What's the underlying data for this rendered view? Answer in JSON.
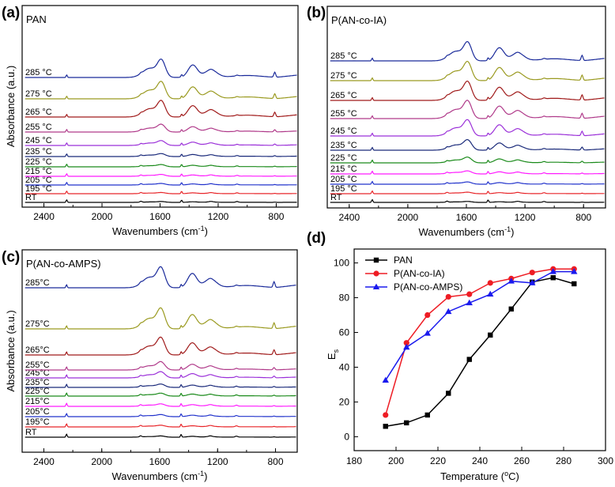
{
  "chart_data": [
    {
      "panel": "(a)",
      "type": "line",
      "title": "PAN",
      "xlabel": "Wavenumbers (cm",
      "xlabel_sup": "-1",
      "xlabel_close": ")",
      "ylabel": "Absorbance (a.u.)",
      "x_range": [
        2550,
        650
      ],
      "x_ticks": [
        "2400",
        "2000",
        "1600",
        "1200",
        "800"
      ],
      "series": [
        {
          "name": "RT",
          "color": "#000000",
          "strength": 0.05
        },
        {
          "name": "195 °C",
          "color": "#e8262a",
          "strength": 0.07
        },
        {
          "name": "205 °C",
          "color": "#2233cc",
          "strength": 0.09
        },
        {
          "name": "215 °C",
          "color": "#ff1aff",
          "strength": 0.11
        },
        {
          "name": "225 °C",
          "color": "#1a8a1a",
          "strength": 0.13
        },
        {
          "name": "235 °C",
          "color": "#1a2a7a",
          "strength": 0.17
        },
        {
          "name": "245 °C",
          "color": "#9b30d9",
          "strength": 0.28
        },
        {
          "name": "255 °C",
          "color": "#b03a8a",
          "strength": 0.45
        },
        {
          "name": "265 °C",
          "color": "#a01a1a",
          "strength": 0.95
        },
        {
          "name": "275 °C",
          "color": "#9a9a20",
          "strength": 1.0
        },
        {
          "name": "285 °C",
          "color": "#1a2a9a",
          "strength": 1.05
        }
      ]
    },
    {
      "panel": "(b)",
      "type": "line",
      "title": "P(AN-co-IA)",
      "xlabel": "Wavenumbers (cm",
      "xlabel_sup": "-1",
      "xlabel_close": ")",
      "ylabel": "",
      "x_range": [
        2550,
        650
      ],
      "x_ticks": [
        "2400",
        "2000",
        "1600",
        "1200",
        "800"
      ],
      "series": [
        {
          "name": "RT",
          "color": "#000000",
          "strength": 0.05
        },
        {
          "name": "195 °C",
          "color": "#e8262a",
          "strength": 0.08
        },
        {
          "name": "205 °C",
          "color": "#2233cc",
          "strength": 0.12
        },
        {
          "name": "215 °C",
          "color": "#ff1aff",
          "strength": 0.16
        },
        {
          "name": "225 °C",
          "color": "#1a8a1a",
          "strength": 0.3
        },
        {
          "name": "235 °C",
          "color": "#1a2a7a",
          "strength": 0.55
        },
        {
          "name": "245 °C",
          "color": "#9b30d9",
          "strength": 0.85
        },
        {
          "name": "255 °C",
          "color": "#b03a8a",
          "strength": 0.95
        },
        {
          "name": "265 °C",
          "color": "#a01a1a",
          "strength": 1.0
        },
        {
          "name": "275 °C",
          "color": "#9a9a20",
          "strength": 1.0
        },
        {
          "name": "285 °C",
          "color": "#1a2a9a",
          "strength": 1.0
        }
      ]
    },
    {
      "panel": "(c)",
      "type": "line",
      "title": "P(AN-co-AMPS)",
      "xlabel": "Wavenumbers (cm",
      "xlabel_sup": "-1",
      "xlabel_close": ")",
      "ylabel": "Absorbance (a.u.)",
      "x_range": [
        2550,
        650
      ],
      "x_ticks": [
        "2400",
        "2000",
        "1600",
        "1200",
        "800"
      ],
      "series": [
        {
          "name": "RT",
          "color": "#000000",
          "strength": 0.06
        },
        {
          "name": "195°C",
          "color": "#e8262a",
          "strength": 0.08
        },
        {
          "name": "205°C",
          "color": "#2233cc",
          "strength": 0.1
        },
        {
          "name": "215°C",
          "color": "#ff1aff",
          "strength": 0.12
        },
        {
          "name": "225°C",
          "color": "#1a8a1a",
          "strength": 0.14
        },
        {
          "name": "235°C",
          "color": "#1a2a7a",
          "strength": 0.16
        },
        {
          "name": "245°C",
          "color": "#9b30d9",
          "strength": 0.3
        },
        {
          "name": "255°C",
          "color": "#b03a8a",
          "strength": 0.4
        },
        {
          "name": "265°C",
          "color": "#a01a1a",
          "strength": 0.85
        },
        {
          "name": "275°C",
          "color": "#9a9a20",
          "strength": 1.0
        },
        {
          "name": "285°C",
          "color": "#1a2a9a",
          "strength": 1.0
        }
      ]
    },
    {
      "panel": "(d)",
      "type": "line",
      "title": "",
      "xlabel": "Temperature (",
      "xlabel_sup": "o",
      "xlabel_close": "C)",
      "ylabel": "E",
      "ylabel_sub": "s",
      "xlim": [
        180,
        300
      ],
      "ylim": [
        -8,
        108
      ],
      "x_ticks": [
        180,
        200,
        220,
        240,
        260,
        280,
        300
      ],
      "y_ticks": [
        0,
        20,
        40,
        60,
        80,
        100
      ],
      "legend": "top-left",
      "series": [
        {
          "name": "PAN",
          "color": "#000000",
          "marker": "square",
          "x": [
            195,
            205,
            215,
            225,
            235,
            245,
            255,
            265,
            275,
            285
          ],
          "y": [
            6,
            8,
            12.5,
            25,
            44.5,
            58.5,
            73.5,
            89,
            91.5,
            88
          ]
        },
        {
          "name": "P(AN-co-IA)",
          "color": "#ee1c24",
          "marker": "circle",
          "x": [
            195,
            205,
            215,
            225,
            235,
            245,
            255,
            265,
            275,
            285
          ],
          "y": [
            12.5,
            54,
            70,
            80.5,
            82,
            88.5,
            91,
            94.5,
            96.5,
            96.5
          ]
        },
        {
          "name": "P(AN-co-AMPS)",
          "color": "#1a1aee",
          "marker": "triangle",
          "x": [
            195,
            205,
            215,
            225,
            235,
            245,
            255,
            265,
            275,
            285
          ],
          "y": [
            32.5,
            51.5,
            59.5,
            72,
            77,
            82,
            89.5,
            88.5,
            95,
            95
          ]
        }
      ]
    }
  ]
}
